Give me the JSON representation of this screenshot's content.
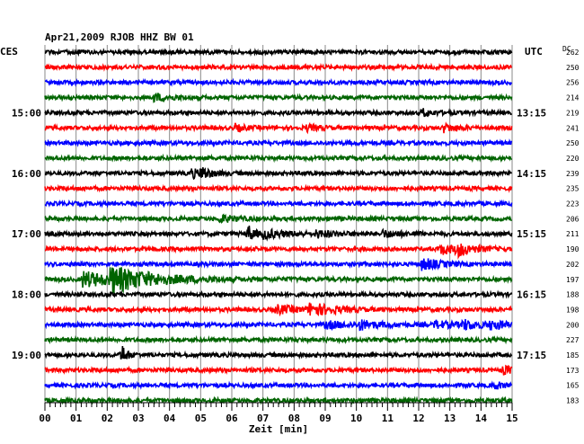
{
  "header": {
    "title": "Apr21,2009   RJOB HHZ BW 01",
    "left_label": "CES",
    "right_label": "UTC",
    "dc_label": "DC"
  },
  "chart_data": {
    "type": "line",
    "title": "Apr21,2009   RJOB HHZ BW 01",
    "xlabel": "Zeit [min]",
    "x_ticks": [
      "00",
      "01",
      "02",
      "03",
      "04",
      "05",
      "06",
      "07",
      "08",
      "09",
      "10",
      "11",
      "12",
      "13",
      "14",
      "15"
    ],
    "xlim": [
      0,
      15
    ],
    "trace_colors": [
      "#000000",
      "#ff0000",
      "#0000ff",
      "#006400"
    ],
    "traces_count": 24,
    "left_hour_labels": [
      {
        "row": 4,
        "label": "15:00"
      },
      {
        "row": 8,
        "label": "16:00"
      },
      {
        "row": 12,
        "label": "17:00"
      },
      {
        "row": 16,
        "label": "18:00"
      },
      {
        "row": 20,
        "label": "19:00"
      }
    ],
    "right_hour_labels": [
      {
        "row": 4,
        "label": "13:15"
      },
      {
        "row": 8,
        "label": "14:15"
      },
      {
        "row": 12,
        "label": "15:15"
      },
      {
        "row": 16,
        "label": "16:15"
      },
      {
        "row": 20,
        "label": "17:15"
      }
    ],
    "dc_values": [
      "262",
      "250",
      "256",
      "214",
      "219",
      "241",
      "250",
      "220",
      "239",
      "235",
      "223",
      "206",
      "211",
      "190",
      "202",
      "197",
      "188",
      "198",
      "200",
      "227",
      "185",
      "173",
      "165",
      "183"
    ],
    "events": [
      {
        "row": 3,
        "x": 3.5,
        "amp": 1.2,
        "dur": 0.5
      },
      {
        "row": 4,
        "x": 12.1,
        "amp": 1.3,
        "dur": 0.3
      },
      {
        "row": 5,
        "x": 6.1,
        "amp": 1.1,
        "dur": 0.3
      },
      {
        "row": 5,
        "x": 8.4,
        "amp": 1.0,
        "dur": 0.4
      },
      {
        "row": 5,
        "x": 12.8,
        "amp": 1.3,
        "dur": 0.4
      },
      {
        "row": 8,
        "x": 4.7,
        "amp": 1.8,
        "dur": 0.2
      },
      {
        "row": 8,
        "x": 5.0,
        "amp": 2.2,
        "dur": 0.3
      },
      {
        "row": 11,
        "x": 5.6,
        "amp": 1.2,
        "dur": 0.5
      },
      {
        "row": 12,
        "x": 6.5,
        "amp": 3.2,
        "dur": 0.2
      },
      {
        "row": 12,
        "x": 7.0,
        "amp": 1.3,
        "dur": 0.8
      },
      {
        "row": 12,
        "x": 8.7,
        "amp": 1.0,
        "dur": 0.6
      },
      {
        "row": 12,
        "x": 10.8,
        "amp": 1.1,
        "dur": 0.6
      },
      {
        "row": 13,
        "x": 12.7,
        "amp": 1.7,
        "dur": 0.5
      },
      {
        "row": 13,
        "x": 13.2,
        "amp": 2.0,
        "dur": 0.5
      },
      {
        "row": 14,
        "x": 12.1,
        "amp": 2.2,
        "dur": 0.5
      },
      {
        "row": 15,
        "x": 1.2,
        "amp": 2.6,
        "dur": 1.2
      },
      {
        "row": 15,
        "x": 2.1,
        "amp": 3.6,
        "dur": 1.4
      },
      {
        "row": 17,
        "x": 7.4,
        "amp": 1.4,
        "dur": 0.7
      },
      {
        "row": 17,
        "x": 8.5,
        "amp": 2.0,
        "dur": 0.7
      },
      {
        "row": 18,
        "x": 9.0,
        "amp": 1.1,
        "dur": 0.8
      },
      {
        "row": 18,
        "x": 10.1,
        "amp": 1.3,
        "dur": 0.6
      },
      {
        "row": 18,
        "x": 12.5,
        "amp": 1.2,
        "dur": 0.6
      },
      {
        "row": 18,
        "x": 13.4,
        "amp": 1.4,
        "dur": 0.6
      },
      {
        "row": 18,
        "x": 14.3,
        "amp": 1.3,
        "dur": 0.5
      },
      {
        "row": 20,
        "x": 2.45,
        "amp": 4.0,
        "dur": 0.15
      },
      {
        "row": 21,
        "x": 14.7,
        "amp": 1.2,
        "dur": 0.4
      },
      {
        "row": 22,
        "x": 14.4,
        "amp": 1.1,
        "dur": 0.4
      }
    ]
  }
}
